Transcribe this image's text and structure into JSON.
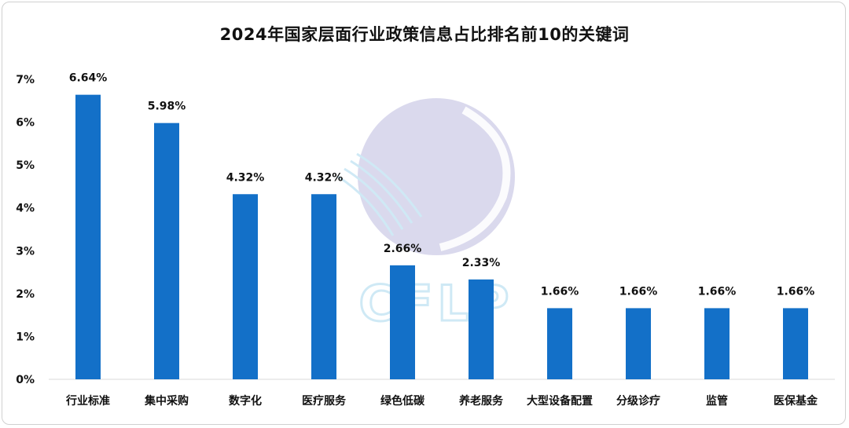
{
  "chart_data": {
    "type": "bar",
    "title": "2024年国家层面行业政策信息占比排名前10的关键词",
    "categories": [
      "行业标准",
      "集中采购",
      "数字化",
      "医疗服务",
      "绿色低碳",
      "养老服务",
      "大型设备配置",
      "分级诊疗",
      "监管",
      "医保基金"
    ],
    "values": [
      6.64,
      5.98,
      4.32,
      4.32,
      2.66,
      2.33,
      1.66,
      1.66,
      1.66,
      1.66
    ],
    "value_labels": [
      "6.64%",
      "5.98%",
      "4.32%",
      "4.32%",
      "2.66%",
      "2.33%",
      "1.66%",
      "1.66%",
      "1.66%",
      "1.66%"
    ],
    "yticks": [
      "0%",
      "1%",
      "2%",
      "3%",
      "4%",
      "5%",
      "6%",
      "7%"
    ],
    "ylim": [
      0,
      7
    ],
    "xlabel": "",
    "ylabel": "",
    "grid": false,
    "legend": "none",
    "bar_color": "#1370c8"
  },
  "watermark": {
    "text": "CFLP"
  }
}
